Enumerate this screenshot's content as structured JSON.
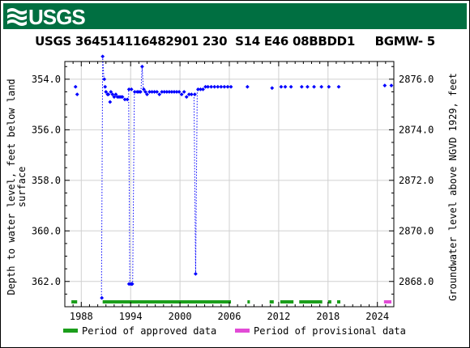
{
  "header": {
    "logo_text": "USGS"
  },
  "chart_data": {
    "type": "scatter",
    "title": "USGS 364514116482901 230  S14 E46 08BBDD1     BGMW- 5",
    "ylabel_left": "Depth to water level, feet below land surface",
    "ylabel_left_lines": [
      "Depth to water level, feet below land",
      "surface"
    ],
    "ylabel_right": "Groundwater level above NGVD 1929, feet",
    "xlim": [
      1986.0,
      2026.0
    ],
    "ylim_left": [
      353.3,
      363.0
    ],
    "ylim_right": [
      2876.7,
      2867.0
    ],
    "land_surface_elevation": 3230.0,
    "x_ticks": [
      1988,
      1994,
      2000,
      2006,
      2012,
      2018,
      2024
    ],
    "x_tick_labels": [
      "1988",
      "1994",
      "2000",
      "2006",
      "2012",
      "2018",
      "2024"
    ],
    "y_left_ticks": [
      354.0,
      356.0,
      358.0,
      360.0,
      362.0
    ],
    "y_left_tick_labels": [
      "354.0",
      "356.0",
      "358.0",
      "360.0",
      "362.0"
    ],
    "y_right_ticks": [
      2876.0,
      2874.0,
      2872.0,
      2870.0,
      2868.0
    ],
    "y_right_tick_labels": [
      "2876.0",
      "2874.0",
      "2872.0",
      "2870.0",
      "2868.0"
    ],
    "grid": true,
    "series": [
      {
        "name": "Depth to water level",
        "color": "#0000ff",
        "marker": "diamond",
        "points": [
          [
            1987.3,
            354.3
          ],
          [
            1987.5,
            354.6
          ],
          [
            1990.5,
            362.65
          ],
          [
            1990.6,
            353.1
          ],
          [
            1990.8,
            354.0
          ],
          [
            1990.9,
            354.3
          ],
          [
            1991.0,
            354.5
          ],
          [
            1991.2,
            354.6
          ],
          [
            1991.3,
            354.6
          ],
          [
            1991.5,
            354.9
          ],
          [
            1991.6,
            354.5
          ],
          [
            1991.8,
            354.6
          ],
          [
            1992.0,
            354.7
          ],
          [
            1992.2,
            354.6
          ],
          [
            1992.4,
            354.7
          ],
          [
            1992.6,
            354.7
          ],
          [
            1992.8,
            354.7
          ],
          [
            1993.0,
            354.7
          ],
          [
            1993.3,
            354.8
          ],
          [
            1993.6,
            354.8
          ],
          [
            1993.8,
            354.4
          ],
          [
            1994.1,
            354.4
          ],
          [
            1993.8,
            362.1
          ],
          [
            1994.0,
            362.1
          ],
          [
            1994.1,
            362.1
          ],
          [
            1994.2,
            362.1
          ],
          [
            1994.5,
            354.5
          ],
          [
            1994.8,
            354.5
          ],
          [
            1995.0,
            354.5
          ],
          [
            1995.2,
            354.5
          ],
          [
            1995.4,
            353.5
          ],
          [
            1995.6,
            354.4
          ],
          [
            1995.8,
            354.5
          ],
          [
            1996.0,
            354.6
          ],
          [
            1996.3,
            354.5
          ],
          [
            1996.6,
            354.5
          ],
          [
            1996.9,
            354.5
          ],
          [
            1997.2,
            354.5
          ],
          [
            1997.5,
            354.6
          ],
          [
            1997.8,
            354.5
          ],
          [
            1998.1,
            354.5
          ],
          [
            1998.4,
            354.5
          ],
          [
            1998.7,
            354.5
          ],
          [
            1999.0,
            354.5
          ],
          [
            1999.3,
            354.5
          ],
          [
            1999.6,
            354.5
          ],
          [
            1999.9,
            354.5
          ],
          [
            2000.2,
            354.6
          ],
          [
            2000.5,
            354.5
          ],
          [
            2000.8,
            354.7
          ],
          [
            2001.1,
            354.6
          ],
          [
            2001.4,
            354.6
          ],
          [
            2001.8,
            354.6
          ],
          [
            2001.9,
            361.7
          ],
          [
            2002.2,
            354.4
          ],
          [
            2002.5,
            354.4
          ],
          [
            2002.8,
            354.4
          ],
          [
            2003.1,
            354.3
          ],
          [
            2003.4,
            354.3
          ],
          [
            2003.8,
            354.3
          ],
          [
            2004.2,
            354.3
          ],
          [
            2004.6,
            354.3
          ],
          [
            2005.0,
            354.3
          ],
          [
            2005.4,
            354.3
          ],
          [
            2005.8,
            354.3
          ],
          [
            2006.2,
            354.3
          ],
          [
            2008.2,
            354.3
          ],
          [
            2011.2,
            354.35
          ],
          [
            2012.3,
            354.3
          ],
          [
            2012.8,
            354.3
          ],
          [
            2013.5,
            354.3
          ],
          [
            2014.8,
            354.3
          ],
          [
            2015.5,
            354.3
          ],
          [
            2016.3,
            354.3
          ],
          [
            2017.2,
            354.3
          ],
          [
            2018.1,
            354.3
          ],
          [
            2019.3,
            354.3
          ],
          [
            2024.9,
            354.25
          ],
          [
            2025.7,
            354.25
          ]
        ],
        "dotted_segments": [
          [
            [
              1990.45,
              362.65
            ],
            [
              1990.6,
              353.1
            ],
            [
              1990.75,
              354.0
            ]
          ],
          [
            [
              1993.75,
              354.45
            ],
            [
              1993.9,
              362.1
            ],
            [
              1994.25,
              362.1
            ],
            [
              1994.45,
              354.5
            ]
          ],
          [
            [
              1995.25,
              354.5
            ],
            [
              1995.4,
              353.5
            ],
            [
              1995.55,
              354.4
            ]
          ],
          [
            [
              2001.7,
              354.6
            ],
            [
              2001.9,
              361.7
            ],
            [
              2002.1,
              354.4
            ]
          ]
        ]
      }
    ],
    "approved_periods": [
      [
        1986.8,
        1987.5
      ],
      [
        1990.6,
        2006.2
      ],
      [
        2008.2,
        2008.5
      ],
      [
        2010.9,
        2011.4
      ],
      [
        2012.2,
        2013.8
      ],
      [
        2014.5,
        2017.3
      ],
      [
        2018.0,
        2018.4
      ],
      [
        2019.1,
        2019.5
      ]
    ],
    "provisional_periods": [
      [
        2024.8,
        2026.0
      ]
    ],
    "legend": [
      {
        "label": "Period of approved data",
        "color": "#1b9e1b"
      },
      {
        "label": "Period of provisional data",
        "color": "#e24bd6"
      }
    ],
    "legend_position": "bottom"
  }
}
